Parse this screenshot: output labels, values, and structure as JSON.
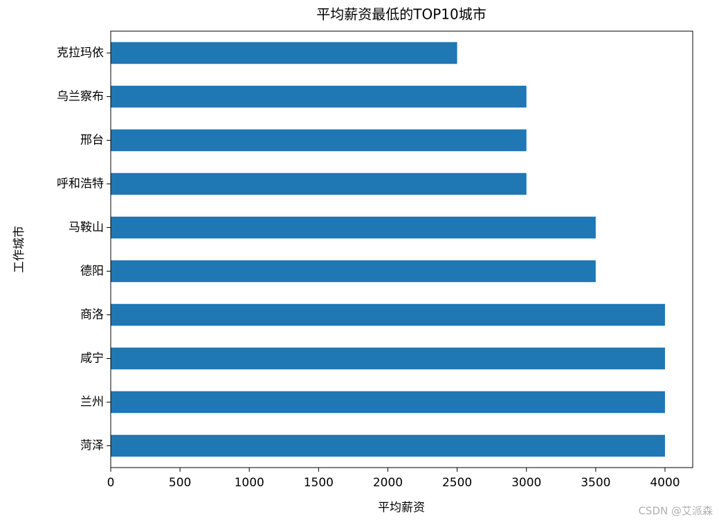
{
  "chart_data": {
    "type": "barh",
    "title": "平均薪资最低的TOP10城市",
    "x_label": "平均薪资",
    "y_label": "工作城市",
    "categories": [
      "克拉玛依",
      "乌兰察布",
      "邢台",
      "呼和浩特",
      "马鞍山",
      "德阳",
      "商洛",
      "咸宁",
      "兰州",
      "菏泽"
    ],
    "values": [
      2500,
      3000,
      3000,
      3000,
      3500,
      3500,
      4000,
      4000,
      4000,
      4000
    ],
    "color": "#1f77b4",
    "xlim": [
      0,
      4200
    ],
    "xticks": [
      0,
      500,
      1000,
      1500,
      2000,
      2500,
      3000,
      3500,
      4000
    ],
    "grid": false
  },
  "watermark": "CSDN @艾派森"
}
